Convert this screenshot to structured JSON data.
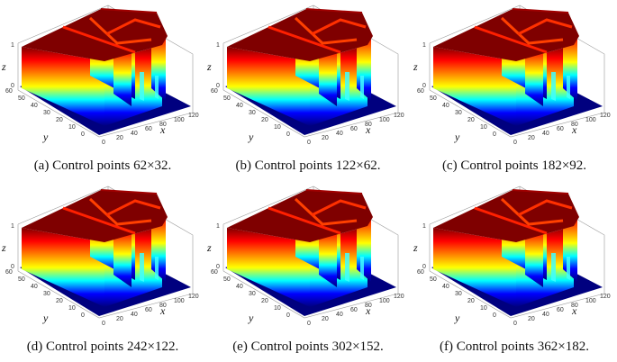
{
  "panels": [
    {
      "caption": "(a) Control points 62×32."
    },
    {
      "caption": "(b) Control points 122×62."
    },
    {
      "caption": "(c) Control points 182×92."
    },
    {
      "caption": "(d) Control points 242×122."
    },
    {
      "caption": "(e) Control points 302×152."
    },
    {
      "caption": "(f) Control points 362×182."
    }
  ],
  "axes": {
    "x_label": "x",
    "y_label": "y",
    "z_label": "z",
    "x_ticks": [
      "0",
      "20",
      "40",
      "60",
      "80",
      "100",
      "120"
    ],
    "y_ticks": [
      "0",
      "10",
      "20",
      "30",
      "40",
      "50",
      "60"
    ],
    "z_ticks": [
      "0",
      "1"
    ]
  },
  "colormap": [
    "#00007f",
    "#0000ff",
    "#00ffff",
    "#ffff00",
    "#ff7f00",
    "#ff0000",
    "#7f0000"
  ]
}
